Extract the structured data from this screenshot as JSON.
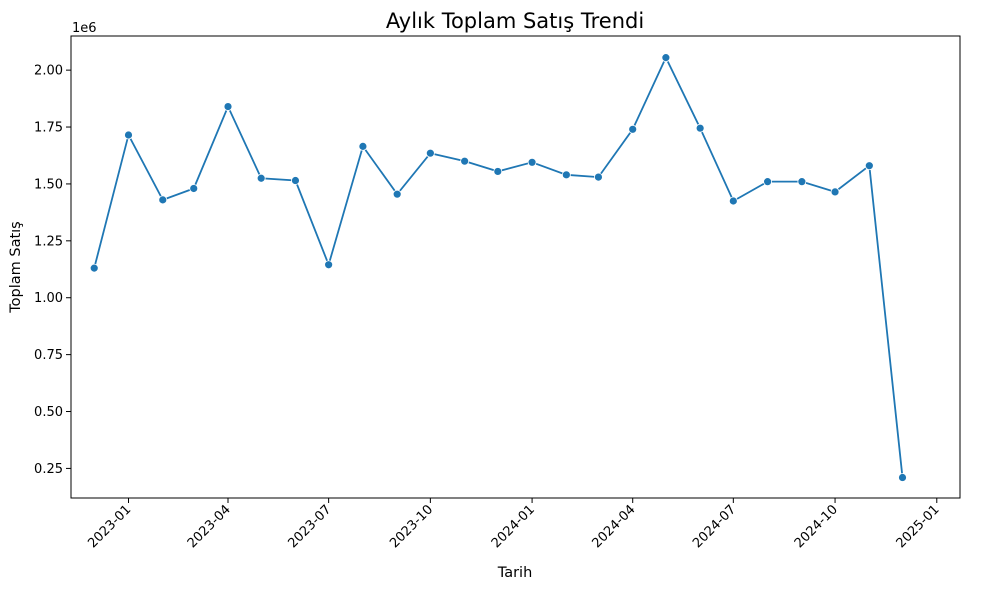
{
  "chart_data": {
    "type": "line",
    "title": "Aylık Toplam Satış Trendi",
    "xlabel": "Tarih",
    "ylabel": "Toplam Satış",
    "y_offset_label": "1e6",
    "ylim": [
      0.12,
      2.15
    ],
    "xlim": [
      "2022-11-10",
      "2025-01-22"
    ],
    "grid": false,
    "color": "#1f77b4",
    "marker": "circle",
    "x_ticks": [
      "2023-01",
      "2023-04",
      "2023-07",
      "2023-10",
      "2024-01",
      "2024-04",
      "2024-07",
      "2024-10",
      "2025-01"
    ],
    "y_ticks": [
      "0.25",
      "0.50",
      "0.75",
      "1.00",
      "1.25",
      "1.50",
      "1.75",
      "2.00"
    ],
    "x": [
      "2022-12-01",
      "2023-01-01",
      "2023-02-01",
      "2023-03-01",
      "2023-04-01",
      "2023-05-01",
      "2023-06-01",
      "2023-07-01",
      "2023-08-01",
      "2023-09-01",
      "2023-10-01",
      "2023-11-01",
      "2023-12-01",
      "2024-01-01",
      "2024-02-01",
      "2024-03-01",
      "2024-04-01",
      "2024-05-01",
      "2024-06-01",
      "2024-07-01",
      "2024-08-01",
      "2024-09-01",
      "2024-10-01",
      "2024-11-01",
      "2024-12-01"
    ],
    "y": [
      1.13,
      1.715,
      1.43,
      1.48,
      1.84,
      1.525,
      1.515,
      1.145,
      1.665,
      1.455,
      1.635,
      1.6,
      1.555,
      1.595,
      1.54,
      1.53,
      1.74,
      2.055,
      1.745,
      1.425,
      1.51,
      1.51,
      1.465,
      1.58,
      0.21
    ]
  }
}
